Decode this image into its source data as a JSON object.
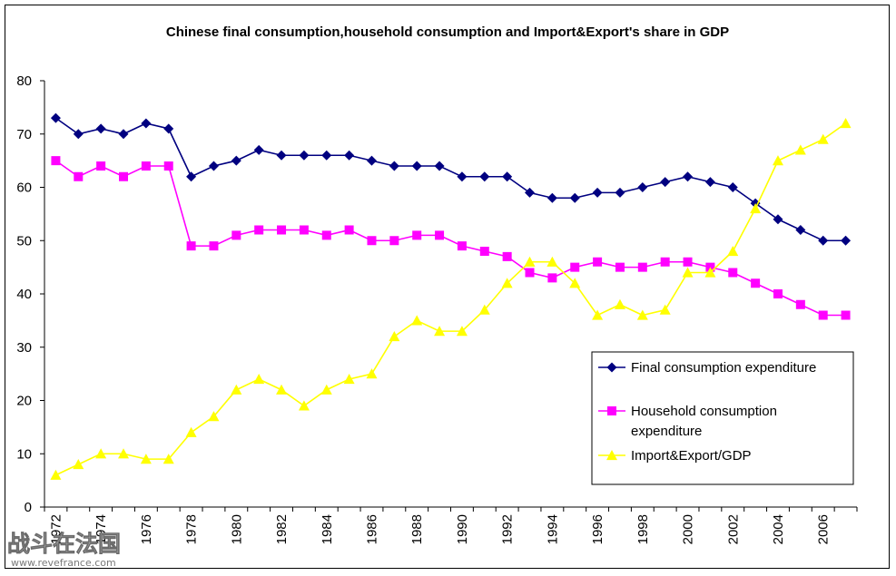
{
  "chart_data": {
    "type": "line",
    "title": "Chinese final consumption,household consumption and Import&Export's share in GDP",
    "xlabel": "",
    "ylabel": "",
    "ylim": [
      0,
      80
    ],
    "yticks": [
      0,
      10,
      20,
      30,
      40,
      50,
      60,
      70,
      80
    ],
    "xticks": [
      "1972",
      "1974",
      "1976",
      "1978",
      "1980",
      "1982",
      "1984",
      "1986",
      "1988",
      "1990",
      "1992",
      "1994",
      "1996",
      "1998",
      "2000",
      "2002",
      "2004",
      "2006"
    ],
    "x": [
      1972,
      1973,
      1974,
      1975,
      1976,
      1977,
      1978,
      1979,
      1980,
      1981,
      1982,
      1983,
      1984,
      1985,
      1986,
      1987,
      1988,
      1989,
      1990,
      1991,
      1992,
      1993,
      1994,
      1995,
      1996,
      1997,
      1998,
      1999,
      2000,
      2001,
      2002,
      2003,
      2004,
      2005,
      2006,
      2007
    ],
    "grid": false,
    "legend_position": "bottom-right",
    "series": [
      {
        "name": "Final consumption expenditure",
        "color": "#000080",
        "marker": "diamond",
        "values": [
          73,
          70,
          71,
          70,
          72,
          71,
          62,
          64,
          65,
          67,
          66,
          66,
          66,
          66,
          65,
          64,
          64,
          64,
          62,
          62,
          62,
          59,
          58,
          58,
          59,
          59,
          60,
          61,
          62,
          61,
          60,
          57,
          54,
          52,
          50,
          50
        ]
      },
      {
        "name": "Household consumption expenditure",
        "color": "#ff00ff",
        "marker": "square",
        "values": [
          65,
          62,
          64,
          62,
          64,
          64,
          49,
          49,
          51,
          52,
          52,
          52,
          51,
          52,
          50,
          50,
          51,
          51,
          49,
          48,
          47,
          44,
          43,
          45,
          46,
          45,
          45,
          46,
          46,
          45,
          44,
          42,
          40,
          38,
          36,
          36
        ]
      },
      {
        "name": "Import&Export/GDP",
        "color": "#ffff00",
        "marker": "triangle",
        "values": [
          6,
          8,
          10,
          10,
          9,
          9,
          14,
          17,
          22,
          24,
          22,
          19,
          22,
          24,
          25,
          32,
          35,
          33,
          33,
          37,
          42,
          46,
          46,
          42,
          36,
          38,
          36,
          37,
          44,
          44,
          48,
          56,
          65,
          67,
          69,
          72
        ]
      }
    ],
    "legend": [
      {
        "lines": [
          "Final consumption expenditure"
        ]
      },
      {
        "lines": [
          "Household consumption",
          "expenditure"
        ]
      },
      {
        "lines": [
          "Import&Export/GDP"
        ]
      }
    ]
  },
  "watermark": {
    "text": "战斗在法国",
    "url": "www.revefrance.com"
  }
}
